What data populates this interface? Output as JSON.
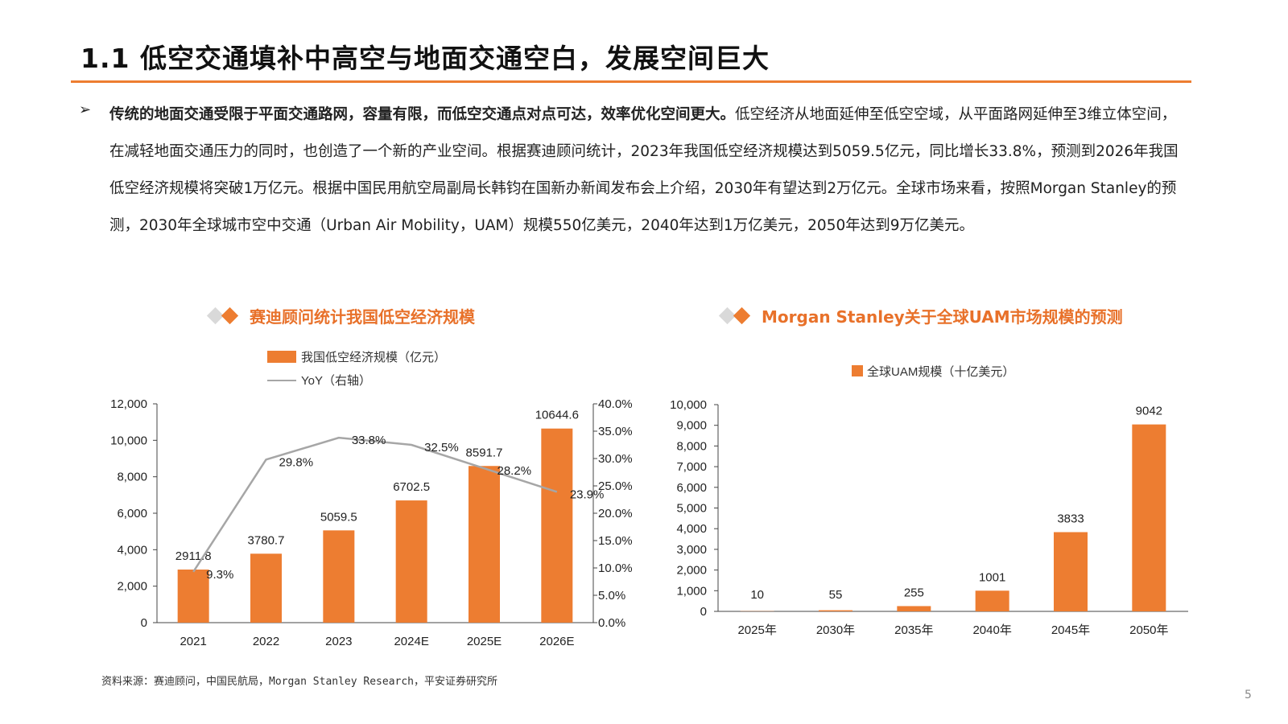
{
  "page": {
    "title": "1.1 低空交通填补中高空与地面交通空白，发展空间巨大",
    "bullet_icon": "arrow-bullet-icon",
    "bullet_glyph": "➢",
    "para_bold": "传统的地面交通受限于平面交通路网，容量有限，而低空交通点对点可达，效率优化空间更大。",
    "para_text": "低空经济从地面延伸至低空空域，从平面路网延伸至3维立体空间，在减轻地面交通压力的同时，也创造了一个新的产业空间。根据赛迪顾问统计，2023年我国低空经济规模达到5059.5亿元，同比增长33.8%，预测到2026年我国低空经济规模将突破1万亿元。根据中国民用航空局副局长韩钧在国新办新闻发布会上介绍，2030年有望达到2万亿元。全球市场来看，按照Morgan Stanley的预测，2030年全球城市空中交通（Urban Air Mobility，UAM）规模550亿美元，2040年达到1万亿美元，2050年达到9万亿美元。",
    "source": "资料来源：赛迪顾问，中国民航局，Morgan Stanley Research，平安证券研究所",
    "page_number": "5",
    "accent_color": "#ed7d31",
    "line_color": "#a6a6a6"
  },
  "chart_data": [
    {
      "type": "bar",
      "heading": "赛迪顾问统计我国低空经济规模",
      "categories": [
        "2021",
        "2022",
        "2023",
        "2024E",
        "2025E",
        "2026E"
      ],
      "series": [
        {
          "name": "我国低空经济规模（亿元）",
          "type": "bar",
          "axis": "left",
          "values": [
            2911.8,
            3780.7,
            5059.5,
            6702.5,
            8591.7,
            10644.6
          ],
          "labels": [
            "2911.8",
            "3780.7",
            "5059.5",
            "6702.5",
            "8591.7",
            "10644.6"
          ]
        },
        {
          "name": "YoY（右轴）",
          "type": "line",
          "axis": "right",
          "values": [
            9.3,
            29.8,
            33.8,
            32.5,
            28.2,
            23.9
          ],
          "labels": [
            "9.3%",
            "29.8%",
            "33.8%",
            "32.5%",
            "28.2%",
            "23.9%"
          ]
        }
      ],
      "ylim": [
        0,
        12000
      ],
      "yticks": [
        "0",
        "2,000",
        "4,000",
        "6,000",
        "8,000",
        "10,000",
        "12,000"
      ],
      "y2lim": [
        0,
        40
      ],
      "y2ticks": [
        "0.0%",
        "5.0%",
        "10.0%",
        "15.0%",
        "20.0%",
        "25.0%",
        "30.0%",
        "35.0%",
        "40.0%"
      ],
      "legend_position": "top-left",
      "grid": false
    },
    {
      "type": "bar",
      "heading": "Morgan Stanley关于全球UAM市场规模的预测",
      "categories": [
        "2025年",
        "2030年",
        "2035年",
        "2040年",
        "2045年",
        "2050年"
      ],
      "series": [
        {
          "name": "全球UAM规模（十亿美元）",
          "values": [
            10,
            55,
            255,
            1001,
            3833,
            9042
          ],
          "labels": [
            "10",
            "55",
            "255",
            "1001",
            "3833",
            "9042"
          ]
        }
      ],
      "ylim": [
        0,
        10000
      ],
      "yticks": [
        "0",
        "1,000",
        "2,000",
        "3,000",
        "4,000",
        "5,000",
        "6,000",
        "7,000",
        "8,000",
        "9,000",
        "10,000"
      ],
      "legend_position": "top-center",
      "grid": false
    }
  ]
}
